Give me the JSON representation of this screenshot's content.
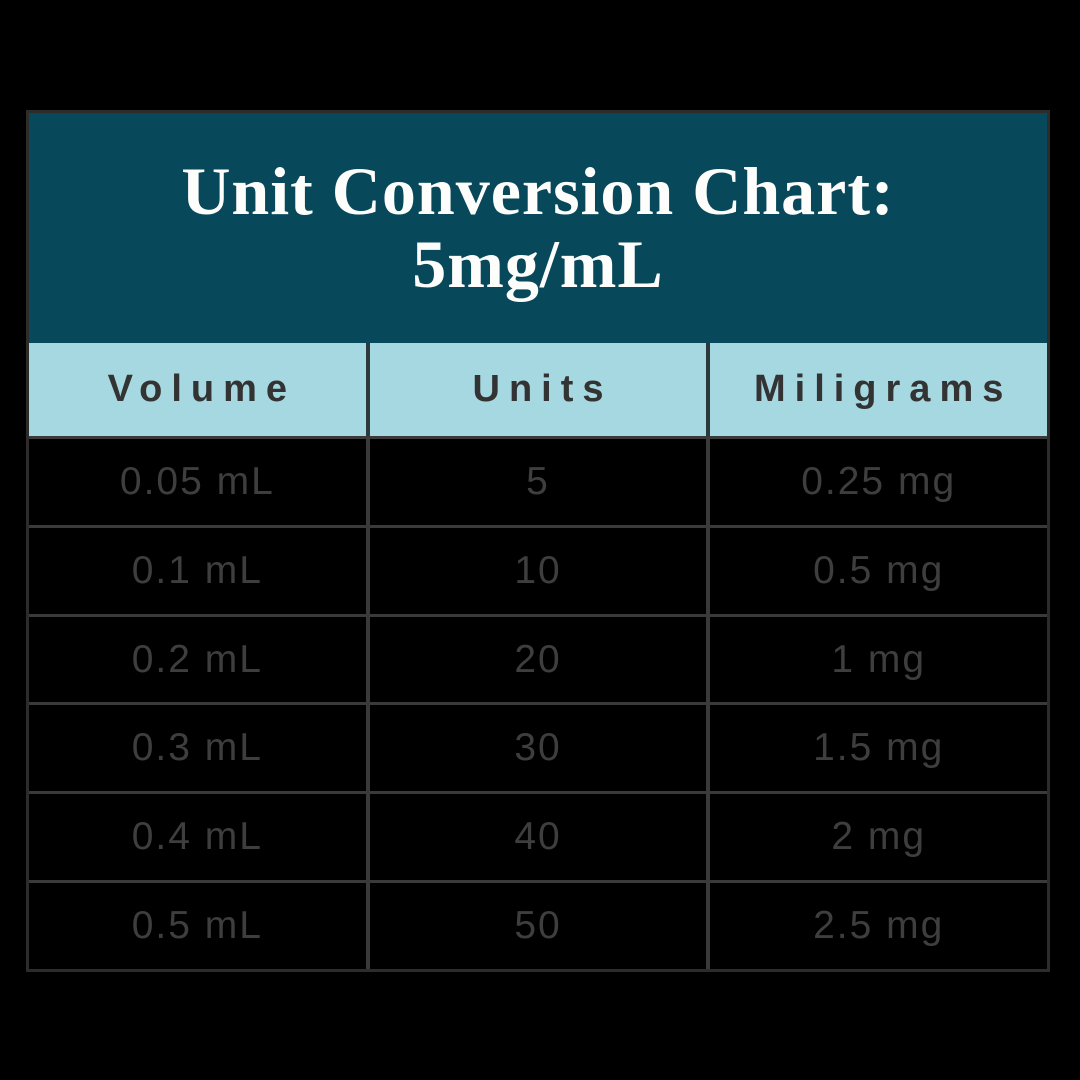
{
  "page": {
    "background": "#000000"
  },
  "colors": {
    "title_band": "#07495A",
    "header_row_bg": "#A6D8E2",
    "grid_line": "#3A3A3A",
    "title_text": "#FDFDFB",
    "header_text": "#333333",
    "cell_text": "#3E3E3E"
  },
  "header": {
    "title_line1": "Unit Conversion Chart:",
    "title_line2": "5mg/mL"
  },
  "chart_data": {
    "type": "table",
    "title": "Unit Conversion Chart: 5mg/mL",
    "concentration": "5mg/mL",
    "columns": [
      "Volume",
      "Units",
      "Miligrams"
    ],
    "rows": [
      [
        "0.05 mL",
        "5",
        "0.25 mg"
      ],
      [
        "0.1 mL",
        "10",
        "0.5 mg"
      ],
      [
        "0.2 mL",
        "20",
        "1 mg"
      ],
      [
        "0.3 mL",
        "30",
        "1.5 mg"
      ],
      [
        "0.4 mL",
        "40",
        "2 mg"
      ],
      [
        "0.5 mL",
        "50",
        "2.5 mg"
      ]
    ]
  }
}
